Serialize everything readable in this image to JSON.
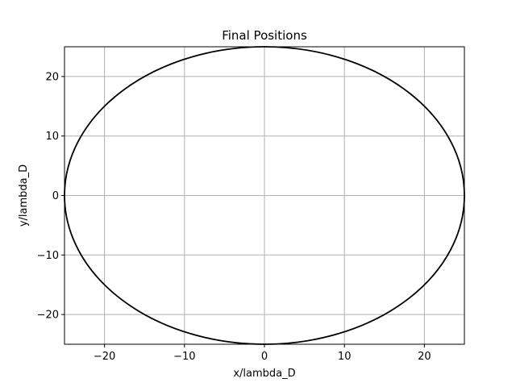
{
  "chart_data": {
    "type": "line",
    "title": "Final Positions",
    "xlabel": "x/lambda_D",
    "ylabel": "y/lambda_D",
    "xlim": [
      -25,
      25
    ],
    "ylim": [
      -25,
      25
    ],
    "xticks": [
      -20,
      -10,
      0,
      10,
      20
    ],
    "yticks": [
      -20,
      -10,
      0,
      10,
      20
    ],
    "grid": true,
    "legend": "none",
    "series": [
      {
        "shape": "circle",
        "center": [
          0,
          0
        ],
        "radius": 25,
        "color": "#000000"
      }
    ]
  },
  "colors": {
    "grid": "#b0b0b0",
    "line": "#000000",
    "frame": "#000000"
  }
}
